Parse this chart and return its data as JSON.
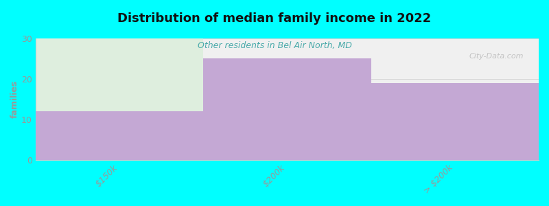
{
  "title": "Distribution of median family income in 2022",
  "subtitle": "Other residents in Bel Air North, MD",
  "categories": [
    "$150k",
    "$200k",
    "> $200k"
  ],
  "values": [
    12,
    25,
    19
  ],
  "bar_color": "#c4a8d4",
  "green_top_color_top": "#e8f5e8",
  "green_top_color_bottom": "#f0faf0",
  "plot_bg_color": "#f0f0f0",
  "background_color": "#00ffff",
  "ylabel": "families",
  "ylim": [
    0,
    30
  ],
  "yticks": [
    0,
    10,
    20,
    30
  ],
  "subtitle_color": "#4aaaaa",
  "title_color": "#111111",
  "watermark": "City-Data.com",
  "tick_label_color": "#999999",
  "axis_color": "#cccccc",
  "first_bar_top_color": "#deeede",
  "bar_edge_color": "#d0b8e0"
}
